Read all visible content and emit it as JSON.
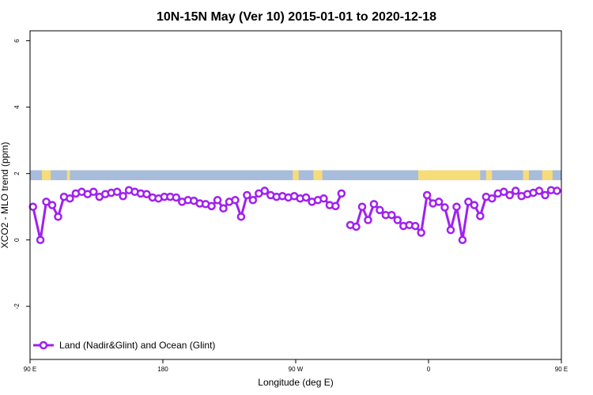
{
  "chart_data": {
    "type": "line",
    "title": "10N-15N May (Ver 10)   2015-01-01 to 2020-12-18",
    "xlabel": "Longitude (deg E)",
    "ylabel": "XCO2 - MLO trend (ppm)",
    "xlim": [
      90,
      450
    ],
    "ylim": [
      -3.6,
      6.3
    ],
    "x_ticks": [
      {
        "value": 90,
        "label": "90 E"
      },
      {
        "value": 180,
        "label": "180"
      },
      {
        "value": 270,
        "label": "90 W"
      },
      {
        "value": 360,
        "label": "0"
      },
      {
        "value": 450,
        "label": "90 E"
      }
    ],
    "y_ticks": [
      {
        "value": -2,
        "label": "-2"
      },
      {
        "value": 0,
        "label": "0"
      },
      {
        "value": 2,
        "label": "2"
      },
      {
        "value": 4,
        "label": "4"
      },
      {
        "value": 6,
        "label": "6"
      }
    ],
    "grid": false,
    "legend_position": "bottom-left",
    "map_strip": {
      "y_range": [
        1.8,
        2.1
      ],
      "ocean_color": "#a8bcdc",
      "land_color": "#f7dc7a",
      "land_spans": [
        [
          98,
          104
        ],
        [
          115,
          117
        ],
        [
          268,
          272
        ],
        [
          282,
          288
        ],
        [
          353,
          395
        ],
        [
          399,
          403
        ],
        [
          424,
          428
        ],
        [
          437,
          444
        ],
        [
          455,
          457
        ]
      ]
    },
    "series": [
      {
        "name": "Land (Nadir&Glint) and Ocean (Glint)",
        "color": "#a020f0",
        "segments": [
          [
            [
              92,
              1.0
            ],
            [
              97,
              0.0
            ],
            [
              101,
              1.15
            ],
            [
              105,
              1.05
            ],
            [
              109,
              0.7
            ],
            [
              113,
              1.3
            ],
            [
              117,
              1.25
            ],
            [
              121,
              1.4
            ],
            [
              125,
              1.45
            ],
            [
              129,
              1.38
            ],
            [
              133,
              1.45
            ],
            [
              137,
              1.3
            ],
            [
              141,
              1.38
            ],
            [
              145,
              1.42
            ],
            [
              149,
              1.45
            ],
            [
              153,
              1.32
            ],
            [
              157,
              1.5
            ],
            [
              161,
              1.45
            ],
            [
              165,
              1.4
            ],
            [
              169,
              1.38
            ],
            [
              173,
              1.28
            ],
            [
              177,
              1.25
            ],
            [
              181,
              1.3
            ],
            [
              185,
              1.3
            ],
            [
              189,
              1.28
            ],
            [
              193,
              1.15
            ],
            [
              197,
              1.2
            ],
            [
              201,
              1.18
            ],
            [
              205,
              1.1
            ],
            [
              209,
              1.08
            ],
            [
              213,
              1.02
            ],
            [
              217,
              1.2
            ],
            [
              221,
              0.95
            ],
            [
              225,
              1.15
            ],
            [
              229,
              1.2
            ],
            [
              233,
              0.7
            ],
            [
              237,
              1.35
            ],
            [
              241,
              1.2
            ],
            [
              245,
              1.4
            ],
            [
              249,
              1.48
            ],
            [
              253,
              1.35
            ],
            [
              257,
              1.3
            ],
            [
              261,
              1.32
            ],
            [
              265,
              1.28
            ],
            [
              269,
              1.32
            ],
            [
              273,
              1.25
            ],
            [
              277,
              1.28
            ],
            [
              281,
              1.15
            ],
            [
              285,
              1.2
            ],
            [
              289,
              1.25
            ],
            [
              293,
              1.05
            ],
            [
              297,
              1.02
            ],
            [
              301,
              1.4
            ]
          ],
          [
            [
              307,
              0.45
            ],
            [
              311,
              0.4
            ],
            [
              315,
              1.0
            ],
            [
              319,
              0.6
            ],
            [
              323,
              1.08
            ],
            [
              327,
              0.9
            ],
            [
              331,
              0.75
            ],
            [
              335,
              0.75
            ],
            [
              339,
              0.6
            ],
            [
              343,
              0.42
            ],
            [
              347,
              0.45
            ],
            [
              351,
              0.42
            ],
            [
              355,
              0.22
            ],
            [
              359,
              1.35
            ],
            [
              363,
              1.1
            ],
            [
              367,
              1.15
            ],
            [
              371,
              0.98
            ],
            [
              375,
              0.3
            ],
            [
              379,
              1.0
            ],
            [
              383,
              0.0
            ],
            [
              387,
              1.15
            ],
            [
              391,
              1.05
            ],
            [
              395,
              0.72
            ],
            [
              399,
              1.3
            ],
            [
              403,
              1.25
            ],
            [
              407,
              1.4
            ],
            [
              411,
              1.45
            ],
            [
              415,
              1.35
            ],
            [
              419,
              1.48
            ],
            [
              423,
              1.32
            ],
            [
              427,
              1.38
            ],
            [
              431,
              1.42
            ],
            [
              435,
              1.48
            ],
            [
              439,
              1.35
            ],
            [
              443,
              1.5
            ],
            [
              447,
              1.48
            ]
          ]
        ]
      }
    ]
  }
}
